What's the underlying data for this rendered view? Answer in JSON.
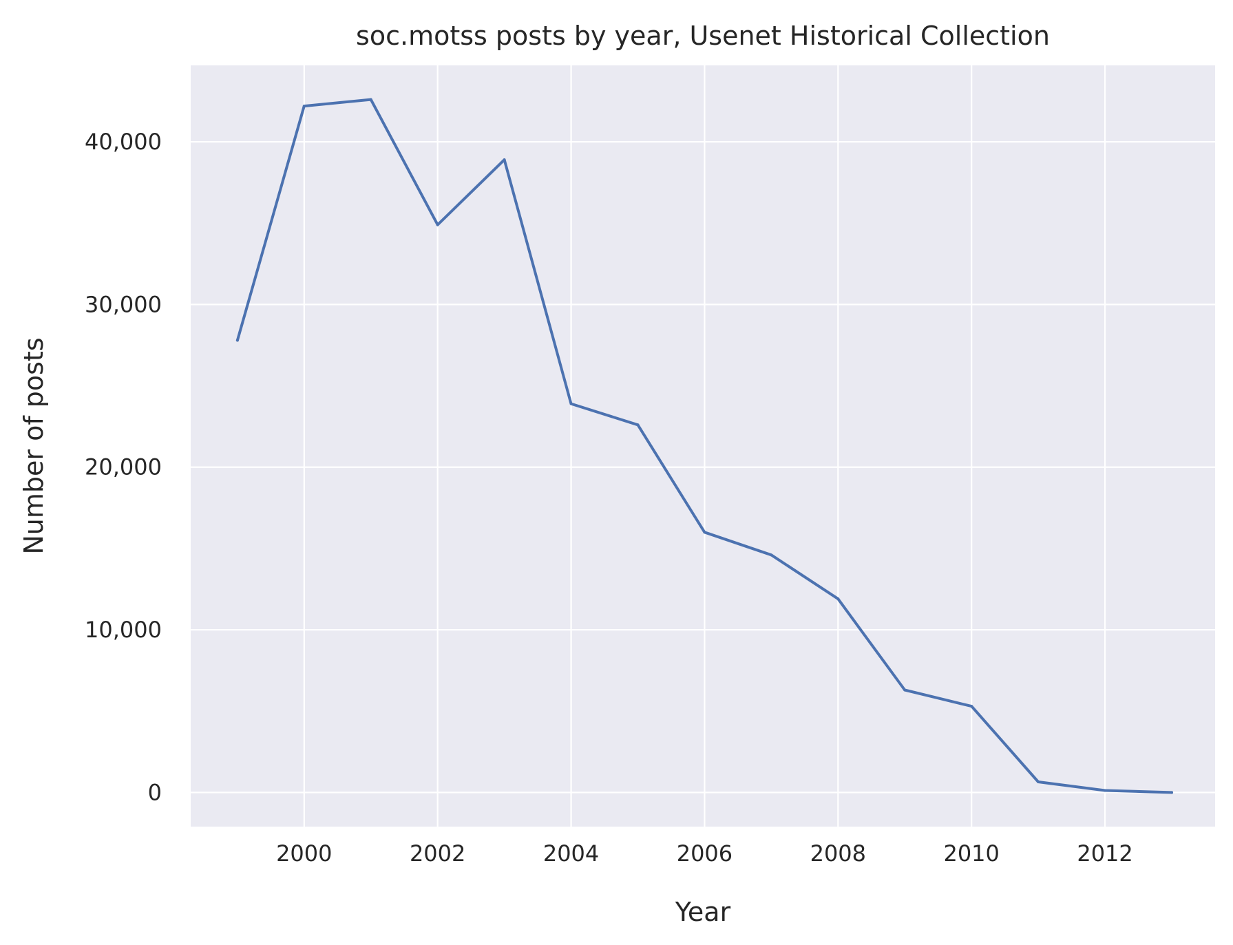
{
  "chart_data": {
    "type": "line",
    "title": "soc.motss posts by year, Usenet Historical Collection",
    "xlabel": "Year",
    "ylabel": "Number of posts",
    "x": [
      1999,
      2000,
      2001,
      2002,
      2003,
      2004,
      2005,
      2006,
      2007,
      2008,
      2009,
      2010,
      2011,
      2012,
      2013
    ],
    "series": [
      {
        "values": [
          27800,
          42200,
          42600,
          34900,
          38900,
          23900,
          22600,
          16000,
          14600,
          11900,
          6300,
          5300,
          650,
          120,
          0
        ]
      }
    ],
    "xlim": [
      1998.3,
      2013.65
    ],
    "ylim": [
      -2100,
      44700
    ],
    "xticks": [
      2000,
      2002,
      2004,
      2006,
      2008,
      2010,
      2012
    ],
    "xtick_labels": [
      "2000",
      "2002",
      "2004",
      "2006",
      "2008",
      "2010",
      "2012"
    ],
    "yticks": [
      0,
      10000,
      20000,
      30000,
      40000
    ],
    "ytick_labels": [
      "0",
      "10,000",
      "20,000",
      "30,000",
      "40,000"
    ],
    "grid": true,
    "legend": "none",
    "colors": {
      "plot_background": "#eaeaf2",
      "line": "#4c72b0",
      "grid": "#ffffff",
      "text": "#262626"
    }
  }
}
